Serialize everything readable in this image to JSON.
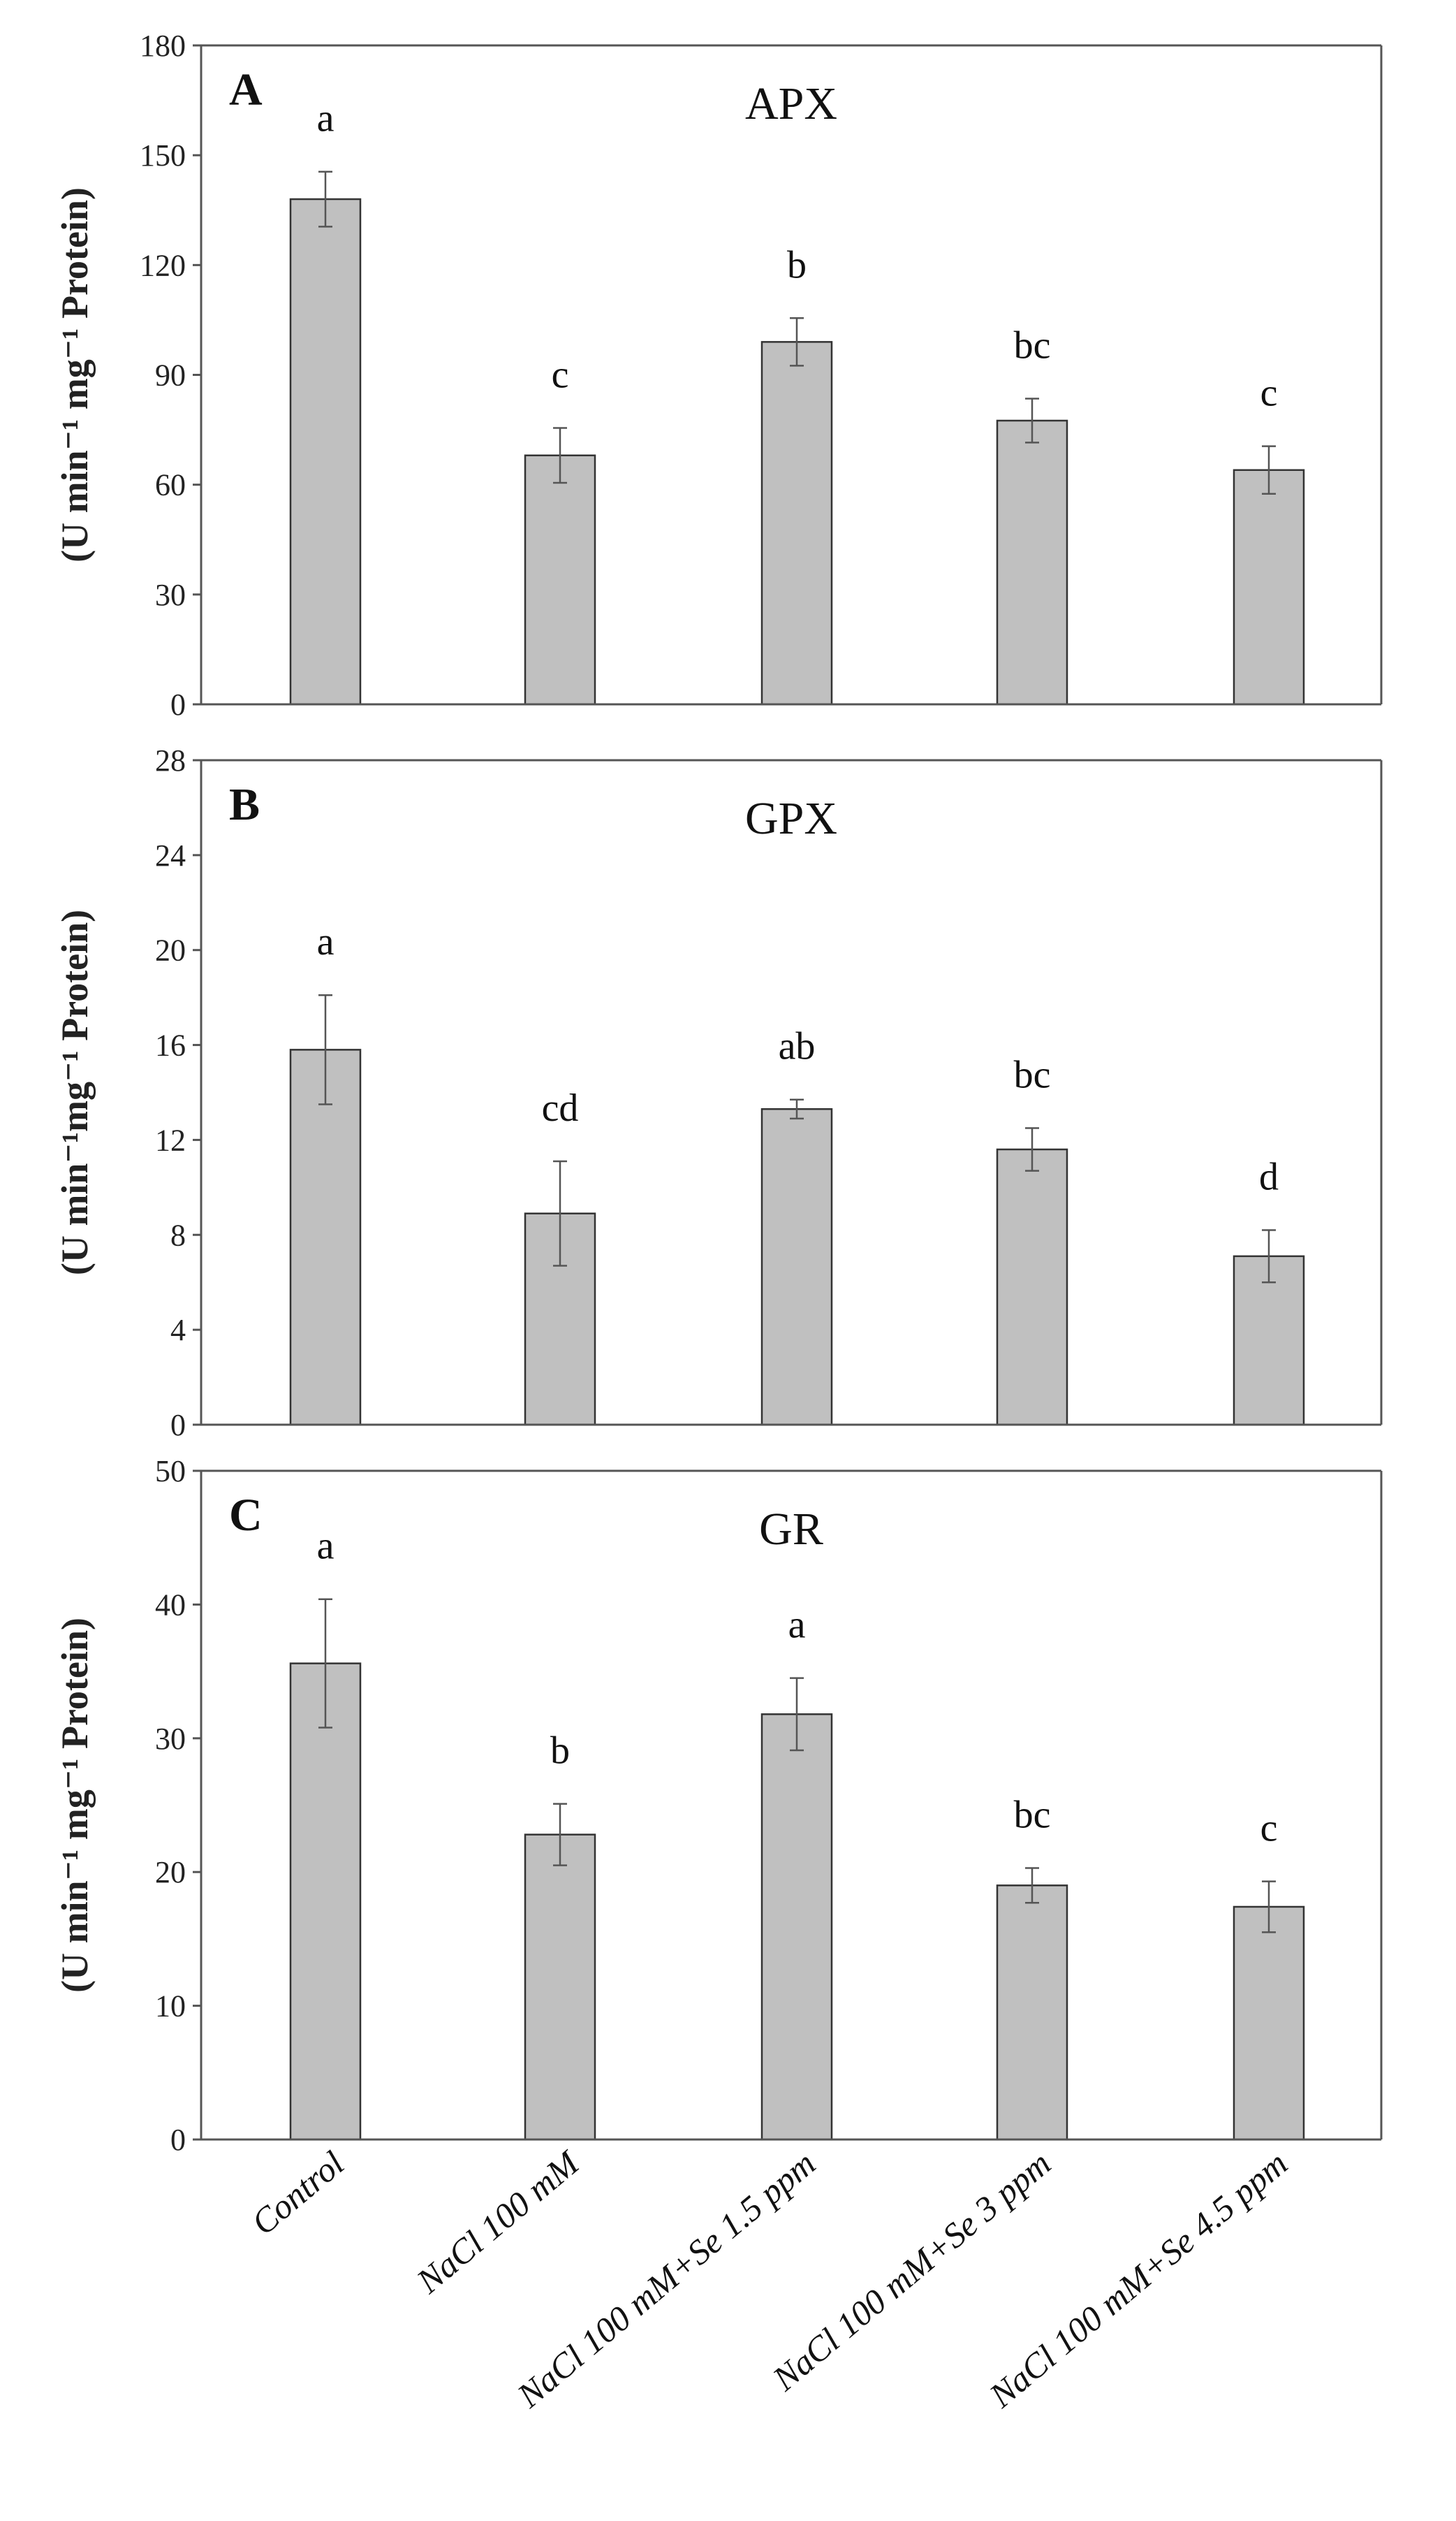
{
  "chart_data": [
    {
      "type": "bar",
      "panel": "A",
      "title": "APX",
      "ylabel": "(U min⁻¹ mg⁻¹ Protein)",
      "ylim": [
        0,
        180
      ],
      "yticks": [
        "0",
        "30",
        "60",
        "90",
        "120",
        "150",
        "180"
      ],
      "categories": [
        "Control",
        "NaCl 100 mM",
        "NaCl 100 mM+Se 1.5 ppm",
        "NaCl 100 mM+Se 3 ppm",
        "NaCl 100 mM+Se 4.5 ppm"
      ],
      "values": [
        138,
        68,
        99,
        77.5,
        64
      ],
      "errors": [
        7.5,
        7.5,
        6.5,
        6,
        6.5
      ],
      "letters": [
        "a",
        "c",
        "b",
        "bc",
        "c"
      ]
    },
    {
      "type": "bar",
      "panel": "B",
      "title": "GPX",
      "ylabel": "(U min⁻¹mg⁻¹ Protein)",
      "ylim": [
        0,
        28
      ],
      "yticks": [
        "0",
        "4",
        "8",
        "12",
        "16",
        "20",
        "24",
        "28"
      ],
      "categories": [
        "Control",
        "NaCl 100 mM",
        "NaCl 100 mM+Se 1.5 ppm",
        "NaCl 100 mM+Se 3 ppm",
        "NaCl 100 mM+Se 4.5 ppm"
      ],
      "values": [
        15.8,
        8.9,
        13.3,
        11.6,
        7.1
      ],
      "errors": [
        2.3,
        2.2,
        0.4,
        0.9,
        1.1
      ],
      "letters": [
        "a",
        "cd",
        "ab",
        "bc",
        "d"
      ]
    },
    {
      "type": "bar",
      "panel": "C",
      "title": "GR",
      "ylabel": "(U min⁻¹ mg⁻¹ Protein)",
      "ylim": [
        0,
        50
      ],
      "yticks": [
        "0",
        "10",
        "20",
        "30",
        "40",
        "50"
      ],
      "categories": [
        "Control",
        "NaCl 100 mM",
        "NaCl 100 mM+Se 1.5 ppm",
        "NaCl 100 mM+Se 3 ppm",
        "NaCl 100 mM+Se 4.5 ppm"
      ],
      "values": [
        35.6,
        22.8,
        31.8,
        19,
        17.4
      ],
      "errors": [
        4.8,
        2.3,
        2.7,
        1.3,
        1.9
      ],
      "letters": [
        "a",
        "b",
        "a",
        "bc",
        "c"
      ]
    }
  ],
  "colors": {
    "bar": "#c0c0c0",
    "edge": "#333333",
    "axis": "#555555"
  }
}
